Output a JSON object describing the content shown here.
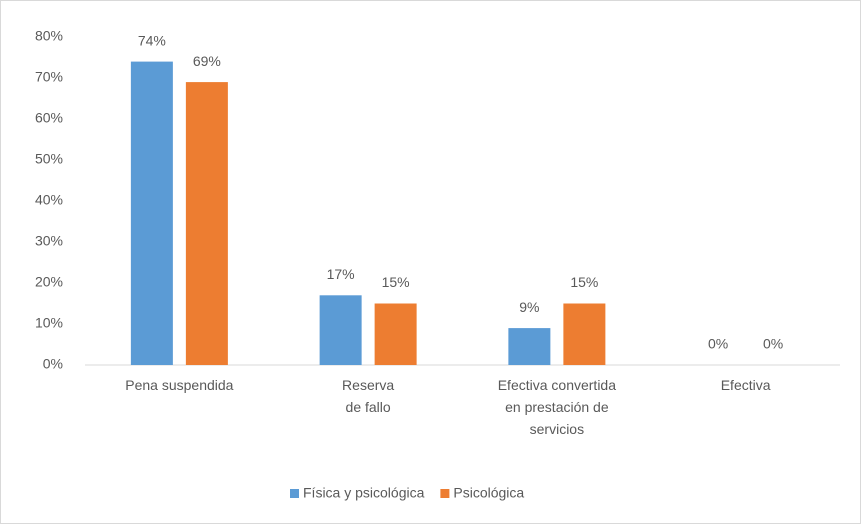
{
  "chart_data": {
    "type": "bar",
    "categories": [
      "Pena suspendida",
      "Reserva\nde fallo",
      "Efectiva convertida\nen prestación de\nservicios",
      "Efectiva"
    ],
    "series": [
      {
        "name": "Física y psicológica",
        "color": "#5b9bd5",
        "values": [
          74,
          17,
          9,
          0
        ],
        "value_labels": [
          "74%",
          "17%",
          "9%",
          "0%"
        ]
      },
      {
        "name": "Psicológica",
        "color": "#ed7d31",
        "values": [
          69,
          15,
          15,
          0
        ],
        "value_labels": [
          "69%",
          "15%",
          "15%",
          "0%"
        ]
      }
    ],
    "ylim": [
      0,
      80
    ],
    "yticks": [
      {
        "value": 0,
        "label": "0%"
      },
      {
        "value": 10,
        "label": "10%"
      },
      {
        "value": 20,
        "label": "20%"
      },
      {
        "value": 30,
        "label": "30%"
      },
      {
        "value": 40,
        "label": "40%"
      },
      {
        "value": 50,
        "label": "50%"
      },
      {
        "value": 60,
        "label": "60%"
      },
      {
        "value": 70,
        "label": "70%"
      },
      {
        "value": 80,
        "label": "80%"
      }
    ],
    "grid": false,
    "legend": "bottom"
  }
}
